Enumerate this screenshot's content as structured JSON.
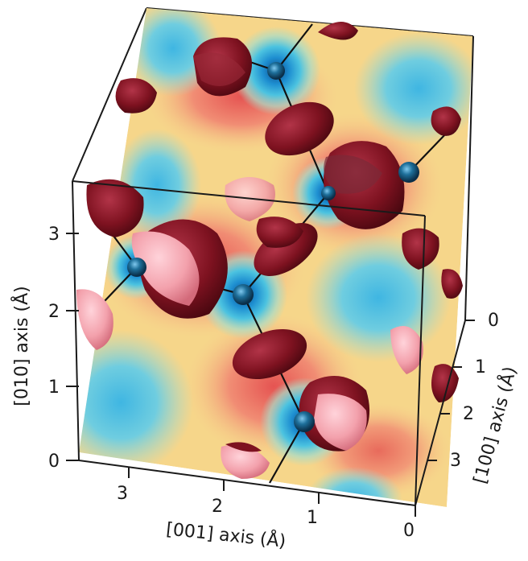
{
  "axes": {
    "y": {
      "title": "[010] axis (Å)",
      "ticks": [
        "0",
        "1",
        "2",
        "3"
      ]
    },
    "x": {
      "title": "[001] axis (Å)",
      "ticks": [
        "3",
        "2",
        "1",
        "0"
      ]
    },
    "z": {
      "title": "[100] axis (Å)",
      "ticks": [
        "0",
        "1",
        "2",
        "3"
      ]
    }
  },
  "colors": {
    "map_high": "#e8424a",
    "map_mid": "#f6d97a",
    "map_low": "#2aa8dc",
    "lobe_dark": "#7e1220",
    "lobe_light": "#f3a1ac",
    "atom": "#1e6f9a"
  }
}
